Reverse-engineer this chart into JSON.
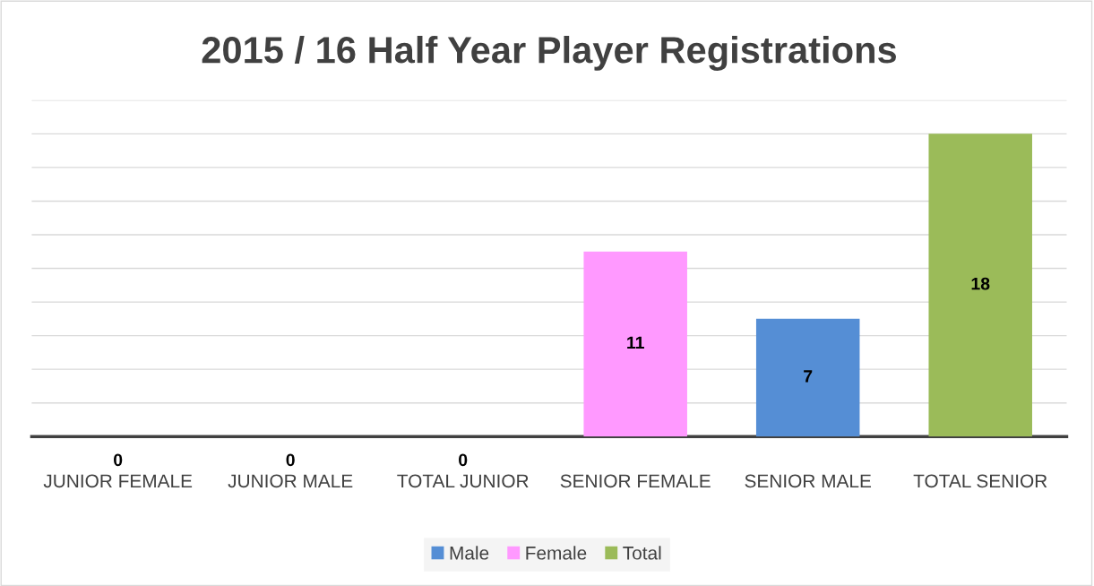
{
  "chart_data": {
    "type": "bar",
    "title": "2015 / 16 Half Year Player Registrations",
    "categories": [
      "JUNIOR FEMALE",
      "JUNIOR MALE",
      "TOTAL JUNIOR",
      "SENIOR FEMALE",
      "SENIOR MALE",
      "TOTAL SENIOR"
    ],
    "series": [
      {
        "name": "Male",
        "color": "#558ed5",
        "values": [
          null,
          0,
          null,
          null,
          7,
          null
        ]
      },
      {
        "name": "Female",
        "color": "#ff99ff",
        "values": [
          0,
          null,
          null,
          11,
          null,
          null
        ]
      },
      {
        "name": "Total",
        "color": "#9bbb59",
        "values": [
          null,
          null,
          0,
          null,
          null,
          18
        ]
      }
    ],
    "ylim": [
      0,
      20
    ],
    "yticks": [
      {
        "value": 0,
        "label": null
      },
      {
        "value": 2,
        "label": null
      },
      {
        "value": 4,
        "label": null
      },
      {
        "value": 6,
        "label": null
      },
      {
        "value": 8,
        "label": null
      },
      {
        "value": 10,
        "label": null
      },
      {
        "value": 12,
        "label": null
      },
      {
        "value": 14,
        "label": null
      },
      {
        "value": 16,
        "label": null
      },
      {
        "value": 18,
        "label": null
      },
      {
        "value": 20,
        "label": null
      }
    ],
    "tick_labels": "x",
    "grid": "y",
    "legend": "bottom",
    "data_labels": true
  }
}
